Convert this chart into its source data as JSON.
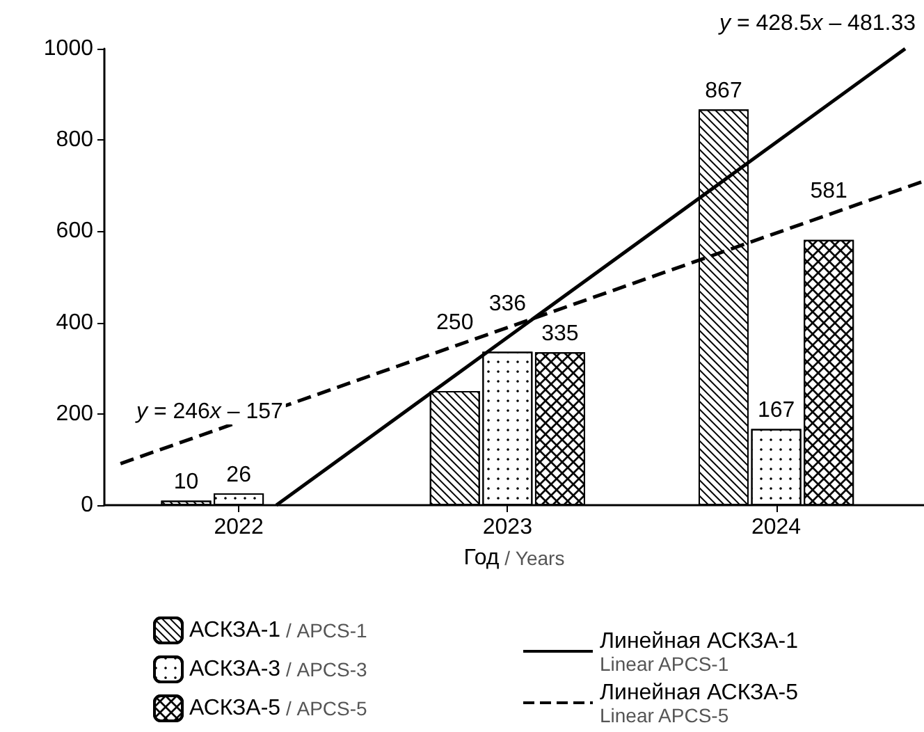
{
  "chart_data": {
    "type": "bar",
    "xlabel": "Год / Years",
    "x": [
      2022,
      2023,
      2024
    ],
    "xlim": [
      2021.5,
      2024.55
    ],
    "xticks": [
      2022,
      2023,
      2024
    ],
    "ylim": [
      0,
      1000
    ],
    "yticks": [
      0,
      200,
      400,
      600,
      800,
      1000
    ],
    "legend": "bottom",
    "grid": false,
    "series": [
      {
        "name": "АСКЗА-1 / APCS-1",
        "color": "#ffffff",
        "values": [
          10,
          250,
          867
        ],
        "value_labels": [
          "10",
          "250",
          "867"
        ]
      },
      {
        "name": "АСКЗА-3 / APCS-3",
        "color": "#ffffff",
        "values": [
          26,
          336,
          167
        ],
        "value_labels": [
          "26",
          "336",
          "167"
        ]
      },
      {
        "name": "АСКЗА-5 / APCS-5",
        "color": "#ffffff",
        "values": [
          null,
          335,
          581
        ],
        "value_labels": [
          null,
          "335",
          "581"
        ]
      },
      {
        "type": "line",
        "name": "Линейная АСКЗА-1\nLinear APCS-1",
        "color": "#000000",
        "line_style": "solid",
        "x": [
          2022.14,
          2024.48
        ],
        "values": [
          0,
          1000
        ]
      },
      {
        "type": "line",
        "name": "Линейная АСКЗА-5\nLinear APCS-5",
        "color": "#000000",
        "line_style": "dashed",
        "x": [
          2021.56,
          2024.55
        ],
        "values": [
          91,
          710
        ]
      }
    ],
    "annotations": [
      "y = 428.5x – 481.33",
      "y = 246x – 157"
    ]
  }
}
